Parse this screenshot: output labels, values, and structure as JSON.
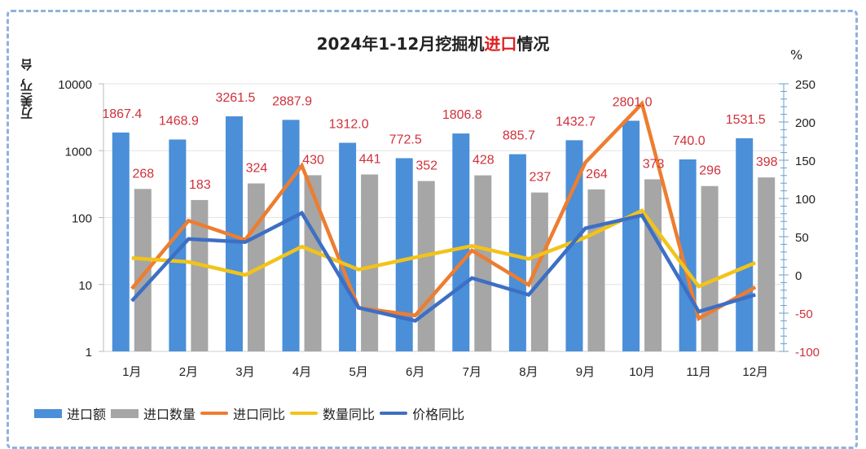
{
  "chart_data": {
    "type": "bar",
    "title_parts": [
      "2024年1-12月挖掘机",
      "进口",
      "情况"
    ],
    "title": "2024年1-12月挖掘机进口情况",
    "ylabel_left": "万美元，台",
    "ylabel_right": "%",
    "categories": [
      "1月",
      "2月",
      "3月",
      "4月",
      "5月",
      "6月",
      "7月",
      "8月",
      "9月",
      "10月",
      "11月",
      "12月"
    ],
    "left_axis": {
      "scale": "log",
      "ylim": [
        1,
        10000
      ],
      "ticks": [
        "1",
        "10",
        "100",
        "1000",
        "10000"
      ]
    },
    "right_axis": {
      "ylim": [
        -100,
        250
      ],
      "ticks": [
        "-100",
        "-50",
        "0",
        "50",
        "100",
        "150",
        "200",
        "250"
      ]
    },
    "bar_series": [
      {
        "name": "进口额",
        "color": "#4a8fd8",
        "values": [
          1867.4,
          1468.9,
          3261.5,
          2887.9,
          1312.0,
          772.5,
          1806.8,
          885.7,
          1432.7,
          2801.0,
          740.0,
          1531.5
        ],
        "labels": [
          "1867.4",
          "1468.9",
          "3261.5",
          "2887.9",
          "1312.0",
          "772.5",
          "1806.8",
          "885.7",
          "1432.7",
          "2801.0",
          "740.0",
          "1531.5"
        ]
      },
      {
        "name": "进口数量",
        "color": "#a6a6a6",
        "values": [
          268,
          183,
          324,
          430,
          441,
          352,
          428,
          237,
          264,
          373,
          296,
          398
        ],
        "labels": [
          "268",
          "183",
          "324",
          "430",
          "441",
          "352",
          "428",
          "237",
          "264",
          "373",
          "296",
          "398"
        ]
      }
    ],
    "line_series": [
      {
        "name": "进口同比",
        "color": "#ed7d31",
        "values": [
          -18,
          71,
          46,
          143,
          -43,
          -53,
          32,
          -13,
          147,
          224,
          -57,
          -16
        ]
      },
      {
        "name": "数量同比",
        "color": "#f2c31a",
        "values": [
          22,
          17,
          0,
          37,
          7,
          23,
          38,
          21,
          49,
          84,
          -15,
          16
        ]
      },
      {
        "name": "价格同比",
        "color": "#3d6fc4",
        "values": [
          -34,
          47,
          43,
          81,
          -43,
          -60,
          -4,
          -26,
          61,
          78,
          -48,
          -26
        ]
      }
    ],
    "data_label_color": "#d0303a",
    "legend_position": "bottom",
    "grid": true
  }
}
